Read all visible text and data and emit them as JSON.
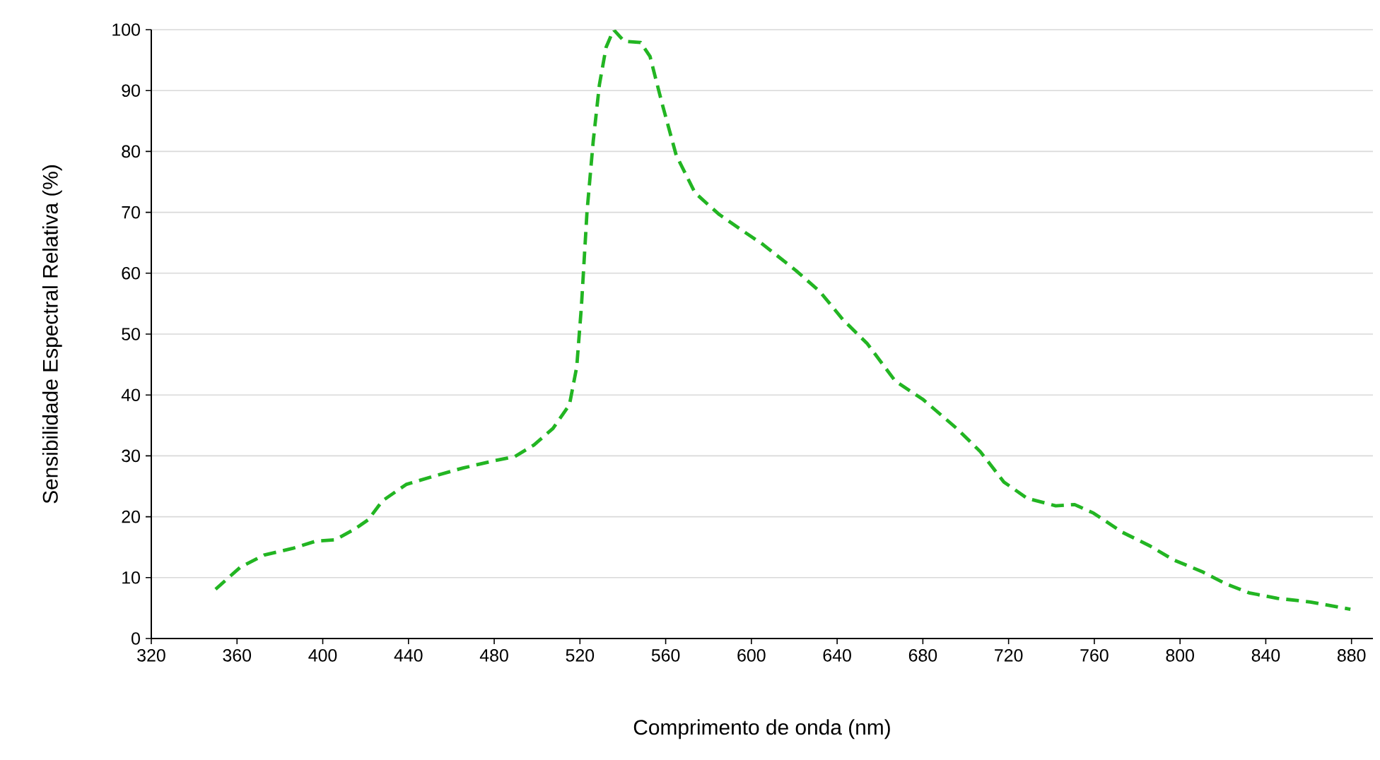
{
  "chart_data": {
    "type": "line",
    "xlabel": "Comprimento de onda (nm)",
    "ylabel": "Sensibilidade Espectral Relativa (%)",
    "xlim": [
      320,
      890
    ],
    "ylim": [
      0,
      100
    ],
    "xticks": [
      320,
      360,
      400,
      440,
      480,
      520,
      560,
      600,
      640,
      680,
      720,
      760,
      800,
      840,
      880
    ],
    "yticks": [
      0,
      10,
      20,
      30,
      40,
      50,
      60,
      70,
      80,
      90,
      100
    ],
    "grid": "y",
    "line_style": "dashed",
    "series": [
      {
        "color": "#22b522",
        "x": [
          350,
          361.5,
          372.6,
          385.9,
          396.9,
          405.7,
          414.6,
          421.2,
          427.8,
          438.9,
          452.2,
          465.4,
          478.7,
          489.7,
          498.6,
          507.4,
          515.1,
          518.5,
          520.7,
          523.3,
          526.2,
          529.1,
          532.2,
          535.7,
          540.6,
          548.3,
          552.7,
          558.3,
          564.9,
          573.7,
          584.8,
          595.8,
          605.5,
          620.9,
          631.9,
          642.9,
          653.9,
          667.1,
          680.3,
          695.8,
          706.8,
          717.8,
          728.8,
          742,
          750.8,
          759.6,
          772.8,
          786,
          797,
          810.2,
          821.2,
          832.2,
          845.4,
          860.8,
          879.5
        ],
        "values": [
          8.1,
          11.7,
          13.7,
          14.8,
          16.0,
          16.2,
          17.9,
          19.5,
          22.6,
          25.3,
          26.7,
          28.0,
          29.1,
          29.9,
          31.8,
          34.5,
          38.4,
          44.6,
          54.6,
          70.1,
          81.7,
          91.0,
          97.1,
          100,
          98.1,
          97.9,
          95.6,
          87.9,
          79.4,
          73.2,
          69.7,
          67.0,
          64.7,
          60.4,
          57.0,
          52.3,
          48.5,
          42.3,
          39.2,
          34.5,
          30.7,
          25.7,
          23.0,
          21.8,
          22.0,
          20.6,
          17.5,
          15.2,
          12.9,
          11.0,
          9.0,
          7.5,
          6.6,
          6.0,
          4.8
        ]
      }
    ]
  }
}
